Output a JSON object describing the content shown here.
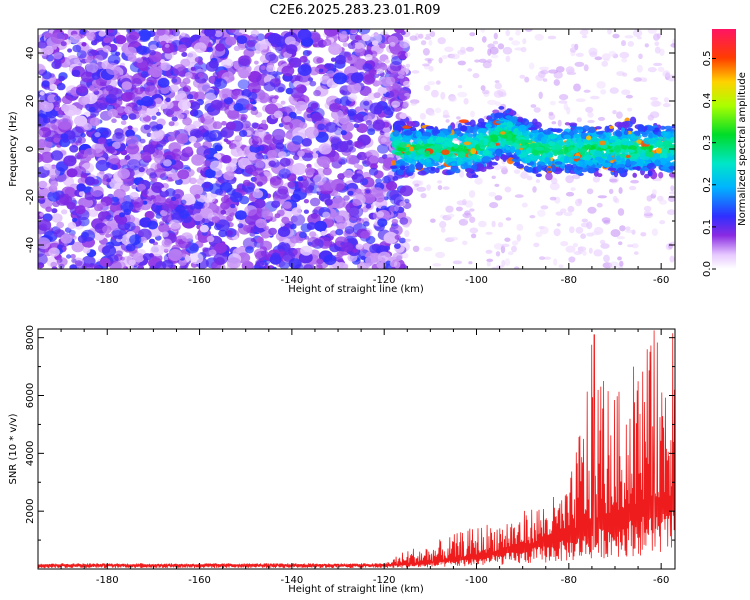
{
  "title": "C2E6.2025.283.23.01.R09",
  "colors": {
    "snr_line": "#ee1c1c",
    "axis": "#000000",
    "background": "#ffffff"
  },
  "chart_data": [
    {
      "type": "heatmap",
      "name": "spectrogram",
      "xlabel": "Height of straight line (km)",
      "ylabel": "Frequency (Hz)",
      "xlim": [
        -195,
        -57
      ],
      "ylim": [
        -50,
        50
      ],
      "xticks": [
        -180,
        -160,
        -140,
        -120,
        -100,
        -80,
        -60
      ],
      "yticks": [
        -40,
        -20,
        0,
        20,
        40
      ],
      "xtick_labels": [
        "-180",
        "-160",
        "-140",
        "-120",
        "-100",
        "-80",
        "-60"
      ],
      "ytick_labels": [
        "-40",
        "-20",
        "0",
        "20",
        "40"
      ],
      "colorbar": {
        "label": "Normalized spectral amplitude",
        "range": [
          0.0,
          0.57
        ],
        "ticks": [
          0.0,
          0.1,
          0.2,
          0.3,
          0.4,
          0.5
        ],
        "tick_labels": [
          "0.0",
          "0.1",
          "0.2",
          "0.3",
          "0.4",
          "0.5"
        ],
        "colormap": "rainbow (white-violet-blue-cyan-green-yellow-red-magenta)"
      },
      "features": {
        "noise_region_km": [
          -195,
          -118
        ],
        "signal_band_km": [
          -118,
          -57
        ],
        "signal_center_freq_hz": 0,
        "signal_half_width_hz": 10,
        "peak_amplitude": 0.45
      }
    },
    {
      "type": "line",
      "name": "snr",
      "xlabel": "Height of straight line (km)",
      "ylabel": "SNR (10 * v/v)",
      "xlim": [
        -195,
        -57
      ],
      "ylim": [
        0,
        8300
      ],
      "xticks": [
        -180,
        -160,
        -140,
        -120,
        -100,
        -80,
        -60
      ],
      "yticks": [
        2000,
        4000,
        6000,
        8000
      ],
      "xtick_labels": [
        "-180",
        "-160",
        "-140",
        "-120",
        "-100",
        "-80",
        "-60"
      ],
      "ytick_labels": [
        "2000",
        "4000",
        "6000",
        "8000"
      ],
      "series": [
        {
          "name": "SNR",
          "envelope": {
            "x": [
              -195,
              -160,
              -120,
              -115,
              -110,
              -100,
              -90,
              -80,
              -75,
              -70,
              -65,
              -60,
              -57
            ],
            "y": [
              200,
              200,
              200,
              700,
              900,
              1500,
              2000,
              2800,
              7800,
              6000,
              7200,
              8200,
              8200
            ]
          },
          "baseline": {
            "x": [
              -195,
              -120,
              -110,
              -100,
              -90,
              -80,
              -70,
              -60,
              -57
            ],
            "y": [
              150,
              150,
              250,
              500,
              800,
              1300,
              2000,
              2500,
              2500
            ]
          },
          "peaks": [
            {
              "x": -74.5,
              "y": 8100
            },
            {
              "x": -72.5,
              "y": 6500
            },
            {
              "x": -66,
              "y": 7000
            },
            {
              "x": -63,
              "y": 7600
            },
            {
              "x": -61.5,
              "y": 8250
            },
            {
              "x": -57.5,
              "y": 8150
            }
          ]
        }
      ]
    }
  ]
}
